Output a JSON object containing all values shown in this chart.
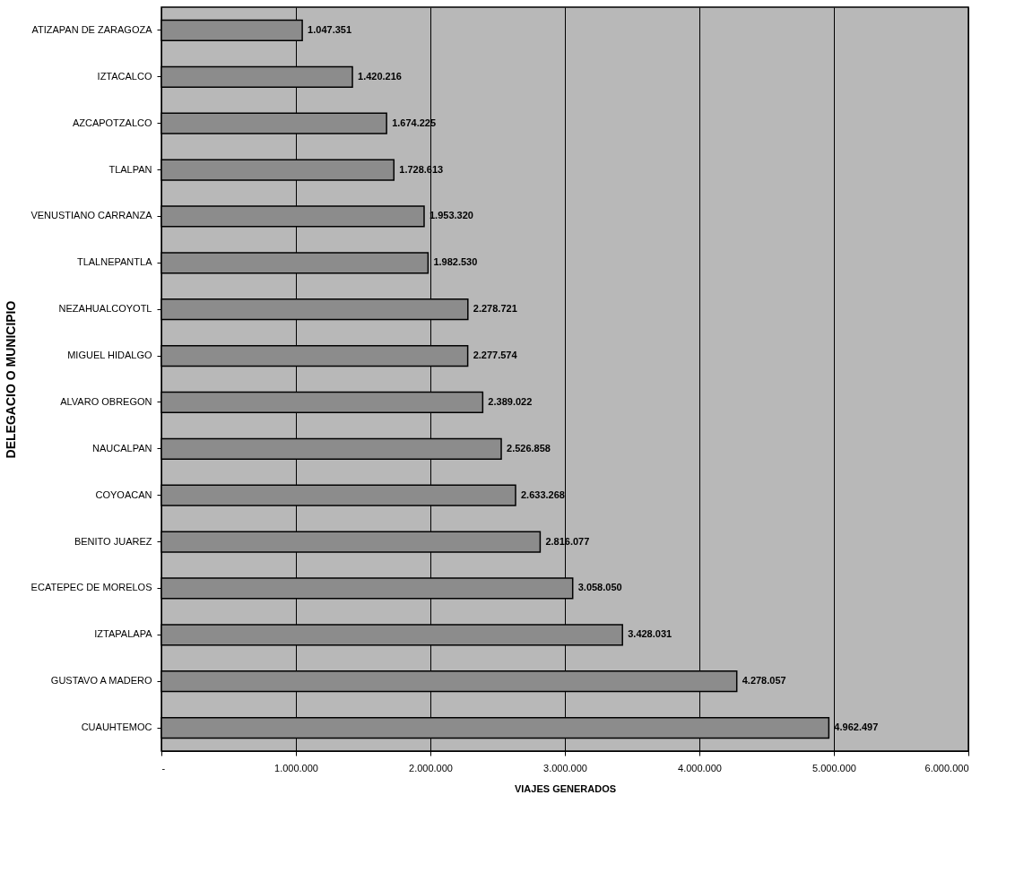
{
  "chart_data": {
    "type": "bar",
    "orientation": "horizontal",
    "xlabel": "VIAJES GENERADOS",
    "ylabel": "DELEGACIO O MUNICIPIO",
    "categories": [
      "ATIZAPAN DE ZARAGOZA",
      "IZTACALCO",
      "AZCAPOTZALCO",
      "TLALPAN",
      "VENUSTIANO CARRANZA",
      "TLALNEPANTLA",
      "NEZAHUALCOYOTL",
      "MIGUEL HIDALGO",
      "ALVARO OBREGON",
      "NAUCALPAN",
      "COYOACAN",
      "BENITO JUAREZ",
      "ECATEPEC DE MORELOS",
      "IZTAPALAPA",
      "GUSTAVO A MADERO",
      "CUAUHTEMOC"
    ],
    "values": [
      1047351,
      1420216,
      1674225,
      1728613,
      1953320,
      1982530,
      2278721,
      2277574,
      2389022,
      2526858,
      2633268,
      2816077,
      3058050,
      3428031,
      4278057,
      4962497
    ],
    "value_labels": [
      "1.047.351",
      "1.420.216",
      "1.674.225",
      "1.728.613",
      "1.953.320",
      "1.982.530",
      "2.278.721",
      "2.277.574",
      "2.389.022",
      "2.526.858",
      "2.633.268",
      "2.816.077",
      "3.058.050",
      "3.428.031",
      "4.278.057",
      "4.962.497"
    ],
    "color": "#8c8c8c",
    "xlim": [
      0,
      6000000
    ],
    "xticks": [
      {
        "value": 0,
        "label": "-"
      },
      {
        "value": 1000000,
        "label": "1.000.000"
      },
      {
        "value": 2000000,
        "label": "2.000.000"
      },
      {
        "value": 3000000,
        "label": "3.000.000"
      },
      {
        "value": 4000000,
        "label": "4.000.000"
      },
      {
        "value": 5000000,
        "label": "5.000.000"
      },
      {
        "value": 6000000,
        "label": "6.000.000"
      }
    ],
    "grid": "x"
  }
}
